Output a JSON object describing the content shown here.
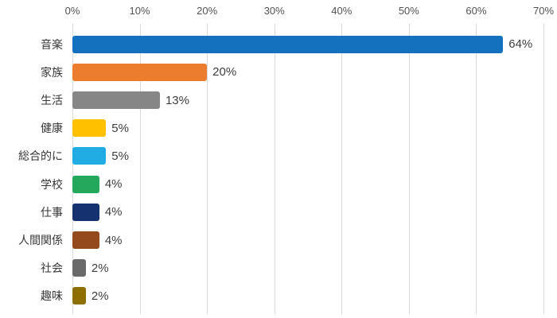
{
  "chart_data": {
    "type": "bar",
    "orientation": "horizontal",
    "title": "",
    "xlabel": "",
    "ylabel": "",
    "categories": [
      "音楽",
      "家族",
      "生活",
      "健康",
      "総合的に",
      "学校",
      "仕事",
      "人間関係",
      "社会",
      "趣味"
    ],
    "values": [
      64,
      20,
      13,
      5,
      5,
      4,
      4,
      4,
      2,
      2
    ],
    "value_labels": [
      "64%",
      "20%",
      "13%",
      "5%",
      "5%",
      "4%",
      "4%",
      "4%",
      "2%",
      "2%"
    ],
    "bar_colors": [
      "#1471be",
      "#ec7d2e",
      "#868686",
      "#ffc000",
      "#21ace3",
      "#24a85c",
      "#16316f",
      "#944a1d",
      "#6a6a6a",
      "#8c6f00"
    ],
    "xlim": [
      0,
      70
    ],
    "tick_step": 10,
    "tick_labels": [
      "0%",
      "10%",
      "20%",
      "30%",
      "40%",
      "50%",
      "60%",
      "70%"
    ],
    "axis_position": "top",
    "grid": "vertical",
    "legend": "none",
    "colors": {
      "background": "#ffffff",
      "gridline": "#d9d9d9",
      "axis_label": "#515151",
      "category_label": "#363636",
      "value_label": "#3d3d3d"
    }
  }
}
